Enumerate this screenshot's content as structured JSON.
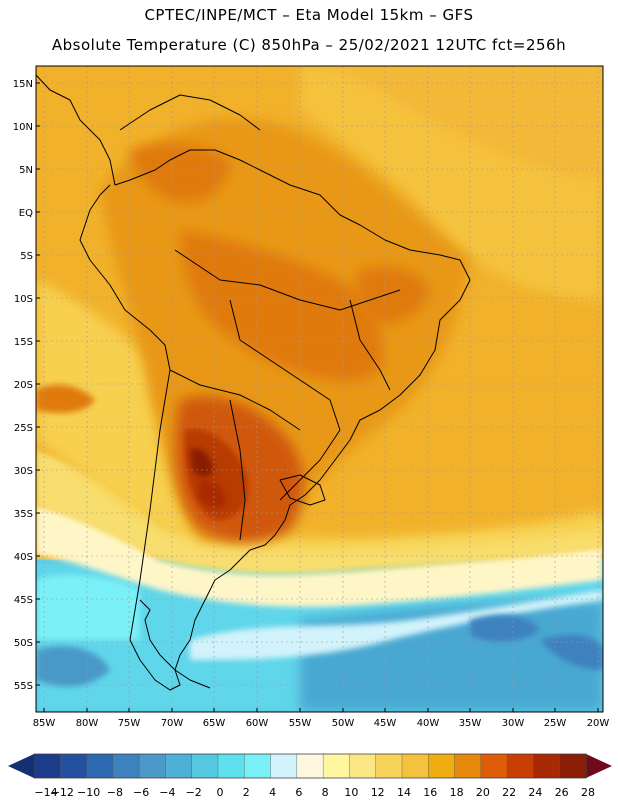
{
  "header": {
    "line1": "CPTEC/INPE/MCT –  Eta Model 15km – GFS",
    "line2": "Absolute Temperature (C) 850hPa – 25/02/2021 12UTC fct=256h"
  },
  "axes": {
    "lat_labels": [
      "15N",
      "10N",
      "5N",
      "EQ",
      "5S",
      "10S",
      "15S",
      "20S",
      "25S",
      "30S",
      "35S",
      "40S",
      "45S",
      "50S",
      "55S"
    ],
    "lon_labels": [
      "85W",
      "80W",
      "75W",
      "70W",
      "65W",
      "60W",
      "55W",
      "50W",
      "45W",
      "40W",
      "35W",
      "30W",
      "25W",
      "20W"
    ]
  },
  "colorbar": {
    "labels": [
      "-14",
      "-12",
      "-10",
      "-8",
      "-6",
      "-4",
      "-2",
      "0",
      "2",
      "4",
      "6",
      "8",
      "10",
      "12",
      "14",
      "16",
      "18",
      "20",
      "22",
      "24",
      "26",
      "28"
    ],
    "colors": [
      "#1e3c8c",
      "#23509f",
      "#2d69b0",
      "#3d82bf",
      "#4a99c8",
      "#4eb0d6",
      "#55c8e2",
      "#5fe0ee",
      "#7af0f7",
      "#d2f3fb",
      "#fff6e0",
      "#fff7a0",
      "#fbe884",
      "#f7d35a",
      "#f5c23e",
      "#f0ad12",
      "#e6880c",
      "#dc5c07",
      "#c83e04",
      "#a82a04",
      "#8a1e06"
    ],
    "low_arrow_color": "#162e72",
    "high_arrow_color": "#6e0a1a"
  },
  "colors": {
    "ocean_warm": "#f3b43a",
    "coastline": "#000000",
    "grid": "#9a9a9a"
  }
}
